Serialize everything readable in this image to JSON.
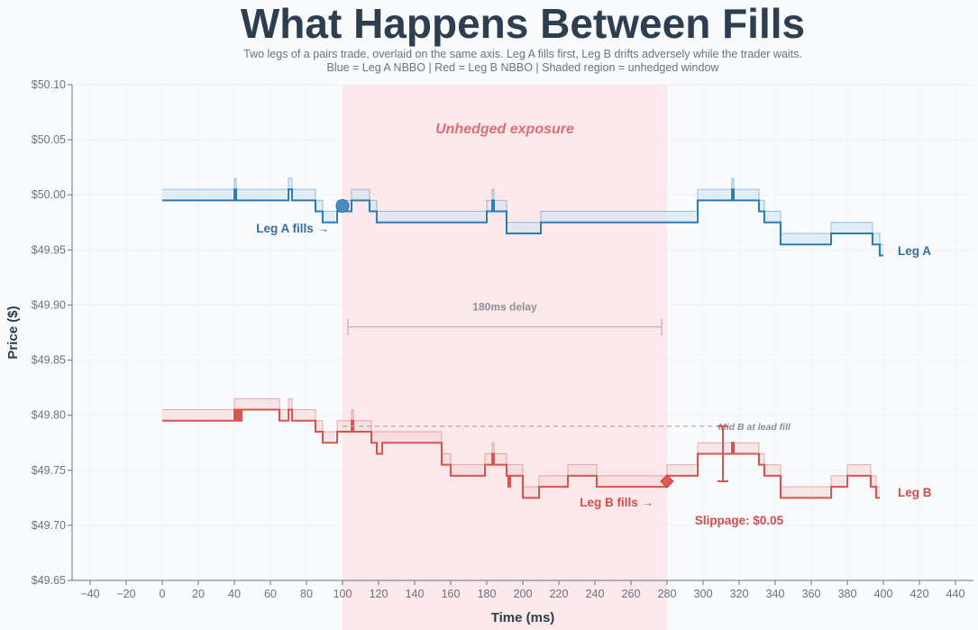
{
  "chart_data": {
    "type": "line",
    "title": "What Happens Between Fills",
    "subtitle_lines": [
      "Two legs of a pairs trade, overlaid on the same axis.  Leg A fills first, Leg B drifts adversely while the trader waits.",
      "Blue = Leg A NBBO | Red = Leg B NBBO | Shaded region = unhedged window"
    ],
    "xlabel": "Time (ms)",
    "ylabel": "Price ($)",
    "xlim": [
      -50,
      450
    ],
    "ylim": [
      49.65,
      50.1
    ],
    "x_ticks": [
      -40,
      -20,
      0,
      20,
      40,
      60,
      80,
      100,
      120,
      140,
      160,
      180,
      200,
      220,
      240,
      260,
      280,
      300,
      320,
      340,
      360,
      380,
      400,
      420,
      440
    ],
    "y_ticks": [
      49.65,
      49.7,
      49.75,
      49.8,
      49.85,
      49.9,
      49.95,
      50.0,
      50.05,
      50.1
    ],
    "grid": true,
    "shaded_region": {
      "x_start": 100,
      "x_end": 280,
      "label": "Unhedged exposure"
    },
    "series": [
      {
        "name": "Leg A",
        "color": "#2f7bb5",
        "fill": "#cfe3f3",
        "bid": [
          [
            0,
            49.995
          ],
          [
            39,
            49.995
          ],
          [
            40,
            50.005
          ],
          [
            41,
            49.995
          ],
          [
            69,
            49.995
          ],
          [
            70,
            50.005
          ],
          [
            72,
            49.995
          ],
          [
            84,
            49.995
          ],
          [
            85,
            49.985
          ],
          [
            88,
            49.985
          ],
          [
            89,
            49.975
          ],
          [
            96,
            49.975
          ],
          [
            97,
            49.985
          ],
          [
            104,
            49.985
          ],
          [
            105,
            49.995
          ],
          [
            114,
            49.995
          ],
          [
            115,
            49.985
          ],
          [
            118,
            49.985
          ],
          [
            119,
            49.975
          ],
          [
            179,
            49.975
          ],
          [
            180,
            49.985
          ],
          [
            182,
            49.985
          ],
          [
            183,
            49.995
          ],
          [
            184,
            49.985
          ],
          [
            190,
            49.985
          ],
          [
            191,
            49.965
          ],
          [
            209,
            49.965
          ],
          [
            210,
            49.975
          ],
          [
            296,
            49.975
          ],
          [
            297,
            49.995
          ],
          [
            315,
            49.995
          ],
          [
            316,
            50.005
          ],
          [
            317,
            49.995
          ],
          [
            330,
            49.995
          ],
          [
            331,
            49.985
          ],
          [
            333,
            49.985
          ],
          [
            334,
            49.975
          ],
          [
            342,
            49.975
          ],
          [
            343,
            49.955
          ],
          [
            370,
            49.955
          ],
          [
            371,
            49.965
          ],
          [
            393,
            49.965
          ],
          [
            394,
            49.955
          ],
          [
            397,
            49.955
          ],
          [
            398,
            49.945
          ],
          [
            400,
            49.945
          ]
        ],
        "ask": [
          [
            0,
            50.005
          ],
          [
            39,
            50.005
          ],
          [
            40,
            50.015
          ],
          [
            41,
            50.005
          ],
          [
            69,
            50.005
          ],
          [
            70,
            50.015
          ],
          [
            72,
            50.005
          ],
          [
            84,
            50.005
          ],
          [
            85,
            49.995
          ],
          [
            88,
            49.995
          ],
          [
            89,
            49.985
          ],
          [
            96,
            49.985
          ],
          [
            97,
            49.995
          ],
          [
            104,
            49.995
          ],
          [
            105,
            50.005
          ],
          [
            114,
            50.005
          ],
          [
            115,
            49.995
          ],
          [
            118,
            49.995
          ],
          [
            119,
            49.985
          ],
          [
            179,
            49.985
          ],
          [
            180,
            49.995
          ],
          [
            182,
            49.995
          ],
          [
            183,
            50.005
          ],
          [
            184,
            49.995
          ],
          [
            190,
            49.995
          ],
          [
            191,
            49.975
          ],
          [
            209,
            49.975
          ],
          [
            210,
            49.985
          ],
          [
            296,
            49.985
          ],
          [
            297,
            50.005
          ],
          [
            315,
            50.005
          ],
          [
            316,
            50.015
          ],
          [
            317,
            50.005
          ],
          [
            330,
            50.005
          ],
          [
            331,
            49.995
          ],
          [
            333,
            49.995
          ],
          [
            334,
            49.985
          ],
          [
            342,
            49.985
          ],
          [
            343,
            49.965
          ],
          [
            370,
            49.965
          ],
          [
            371,
            49.975
          ],
          [
            393,
            49.975
          ],
          [
            394,
            49.965
          ],
          [
            397,
            49.965
          ],
          [
            398,
            49.955
          ],
          [
            400,
            49.955
          ]
        ],
        "fill_point": {
          "x": 100,
          "y": 49.99
        },
        "fill_label": "Leg A fills →",
        "end_label": "Leg A"
      },
      {
        "name": "Leg B",
        "color": "#d9534f",
        "fill": "#f6d5d6",
        "bid": [
          [
            0,
            49.795
          ],
          [
            39,
            49.795
          ],
          [
            40,
            49.805
          ],
          [
            41,
            49.795
          ],
          [
            42,
            49.805
          ],
          [
            43,
            49.795
          ],
          [
            44,
            49.805
          ],
          [
            64,
            49.805
          ],
          [
            65,
            49.795
          ],
          [
            69,
            49.795
          ],
          [
            70,
            49.805
          ],
          [
            72,
            49.795
          ],
          [
            84,
            49.795
          ],
          [
            85,
            49.785
          ],
          [
            88,
            49.785
          ],
          [
            89,
            49.775
          ],
          [
            96,
            49.775
          ],
          [
            97,
            49.785
          ],
          [
            104,
            49.785
          ],
          [
            105,
            49.795
          ],
          [
            106,
            49.785
          ],
          [
            115,
            49.785
          ],
          [
            116,
            49.775
          ],
          [
            118,
            49.775
          ],
          [
            119,
            49.765
          ],
          [
            121,
            49.765
          ],
          [
            122,
            49.775
          ],
          [
            154,
            49.775
          ],
          [
            155,
            49.755
          ],
          [
            159,
            49.755
          ],
          [
            160,
            49.745
          ],
          [
            178,
            49.745
          ],
          [
            179,
            49.755
          ],
          [
            182,
            49.755
          ],
          [
            183,
            49.765
          ],
          [
            184,
            49.755
          ],
          [
            190,
            49.755
          ],
          [
            191,
            49.745
          ],
          [
            192,
            49.735
          ],
          [
            193,
            49.745
          ],
          [
            199,
            49.745
          ],
          [
            200,
            49.725
          ],
          [
            208,
            49.725
          ],
          [
            209,
            49.735
          ],
          [
            224,
            49.735
          ],
          [
            225,
            49.745
          ],
          [
            240,
            49.745
          ],
          [
            241,
            49.735
          ],
          [
            279,
            49.735
          ],
          [
            280,
            49.745
          ],
          [
            296,
            49.745
          ],
          [
            297,
            49.765
          ],
          [
            315,
            49.765
          ],
          [
            316,
            49.775
          ],
          [
            317,
            49.765
          ],
          [
            330,
            49.765
          ],
          [
            331,
            49.755
          ],
          [
            333,
            49.755
          ],
          [
            334,
            49.745
          ],
          [
            342,
            49.745
          ],
          [
            343,
            49.725
          ],
          [
            370,
            49.725
          ],
          [
            371,
            49.735
          ],
          [
            379,
            49.735
          ],
          [
            380,
            49.745
          ],
          [
            392,
            49.745
          ],
          [
            393,
            49.735
          ],
          [
            395,
            49.735
          ],
          [
            396,
            49.725
          ],
          [
            398,
            49.725
          ]
        ],
        "ask": [
          [
            0,
            49.805
          ],
          [
            39,
            49.805
          ],
          [
            40,
            49.815
          ],
          [
            64,
            49.815
          ],
          [
            65,
            49.805
          ],
          [
            69,
            49.805
          ],
          [
            70,
            49.815
          ],
          [
            72,
            49.805
          ],
          [
            84,
            49.805
          ],
          [
            85,
            49.795
          ],
          [
            88,
            49.795
          ],
          [
            89,
            49.785
          ],
          [
            96,
            49.785
          ],
          [
            97,
            49.795
          ],
          [
            104,
            49.795
          ],
          [
            105,
            49.805
          ],
          [
            106,
            49.795
          ],
          [
            115,
            49.795
          ],
          [
            116,
            49.785
          ],
          [
            121,
            49.785
          ],
          [
            122,
            49.785
          ],
          [
            154,
            49.785
          ],
          [
            155,
            49.765
          ],
          [
            159,
            49.765
          ],
          [
            160,
            49.755
          ],
          [
            178,
            49.755
          ],
          [
            179,
            49.765
          ],
          [
            182,
            49.765
          ],
          [
            183,
            49.775
          ],
          [
            184,
            49.765
          ],
          [
            190,
            49.765
          ],
          [
            191,
            49.755
          ],
          [
            199,
            49.755
          ],
          [
            200,
            49.735
          ],
          [
            208,
            49.735
          ],
          [
            209,
            49.745
          ],
          [
            224,
            49.745
          ],
          [
            225,
            49.755
          ],
          [
            240,
            49.755
          ],
          [
            241,
            49.745
          ],
          [
            279,
            49.745
          ],
          [
            280,
            49.755
          ],
          [
            296,
            49.755
          ],
          [
            297,
            49.775
          ],
          [
            330,
            49.775
          ],
          [
            331,
            49.765
          ],
          [
            333,
            49.765
          ],
          [
            334,
            49.755
          ],
          [
            342,
            49.755
          ],
          [
            343,
            49.735
          ],
          [
            370,
            49.735
          ],
          [
            371,
            49.745
          ],
          [
            379,
            49.745
          ],
          [
            380,
            49.755
          ],
          [
            392,
            49.755
          ],
          [
            393,
            49.745
          ],
          [
            395,
            49.745
          ],
          [
            396,
            49.735
          ],
          [
            398,
            49.735
          ]
        ],
        "fill_point": {
          "x": 280,
          "y": 49.74
        },
        "fill_label": "Leg B fills →",
        "end_label": "Leg B"
      }
    ],
    "annotations": {
      "delay_label": "180ms delay",
      "delay_y": 49.89,
      "mid_reference": {
        "y": 49.79,
        "x_start": 100,
        "x_end": 312,
        "label": "Mid B at lead fill"
      },
      "slippage_bar": {
        "x": 311,
        "y_top": 49.79,
        "y_bottom": 49.74
      },
      "slippage_label": "Slippage: $0.05"
    }
  }
}
